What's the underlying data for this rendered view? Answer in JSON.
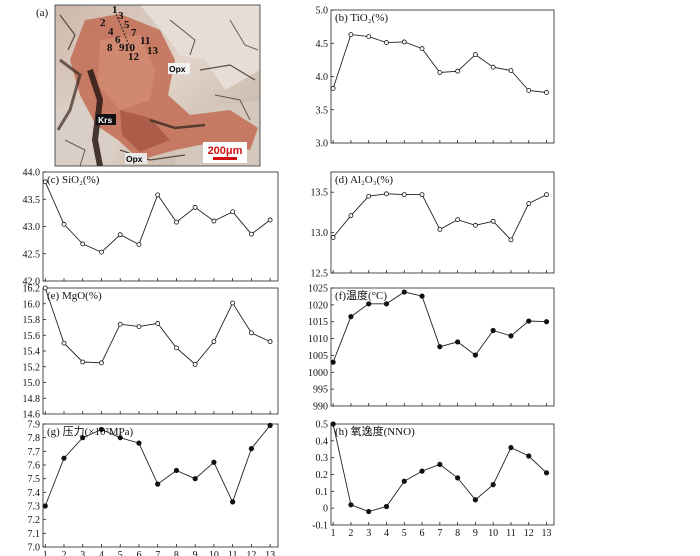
{
  "photo": {
    "label": "(a)",
    "annotations": [
      "Opx",
      "Krs",
      "Opx"
    ],
    "scalebar": "200μm",
    "spots": [
      "1",
      "2",
      "3",
      "4",
      "5",
      "6",
      "7",
      "8",
      "9",
      "10",
      "11",
      "12",
      "13"
    ]
  },
  "chart_data": [
    {
      "id": "b",
      "type": "line",
      "title": "(b) TiO₂(%)",
      "x": [
        1,
        2,
        3,
        4,
        5,
        6,
        7,
        8,
        9,
        10,
        11,
        12,
        13
      ],
      "values": [
        3.82,
        4.63,
        4.6,
        4.51,
        4.52,
        4.42,
        4.06,
        4.08,
        4.33,
        4.14,
        4.09,
        3.79,
        3.76
      ],
      "ylim": [
        3.0,
        5.0
      ],
      "yticks": [
        "3.0",
        "3.5",
        "4.0",
        "4.5",
        "5.0"
      ],
      "marker": "open"
    },
    {
      "id": "c",
      "type": "line",
      "title": "(c) SiO₂(%)",
      "x": [
        1,
        2,
        3,
        4,
        5,
        6,
        7,
        8,
        9,
        10,
        11,
        12,
        13
      ],
      "values": [
        43.82,
        43.04,
        42.68,
        42.53,
        42.85,
        42.67,
        43.58,
        43.08,
        43.35,
        43.1,
        43.27,
        42.86,
        43.12
      ],
      "ylim": [
        42.0,
        44.0
      ],
      "yticks": [
        "42.0",
        "42.5",
        "43.0",
        "43.5",
        "44.0"
      ],
      "marker": "open"
    },
    {
      "id": "d",
      "type": "line",
      "title": "(d) Al₂O₃(%)",
      "x": [
        1,
        2,
        3,
        4,
        5,
        6,
        7,
        8,
        9,
        10,
        11,
        12,
        13
      ],
      "values": [
        12.94,
        13.21,
        13.45,
        13.48,
        13.47,
        13.47,
        13.04,
        13.16,
        13.09,
        13.14,
        12.91,
        13.36,
        13.47
      ],
      "ylim": [
        12.5,
        13.75
      ],
      "yticks": [
        "12.5",
        "13.0",
        "13.5"
      ],
      "marker": "open"
    },
    {
      "id": "e",
      "type": "line",
      "title": "(e) MgO(%)",
      "x": [
        1,
        2,
        3,
        4,
        5,
        6,
        7,
        8,
        9,
        10,
        11,
        12,
        13
      ],
      "values": [
        16.2,
        15.5,
        15.26,
        15.25,
        15.74,
        15.71,
        15.75,
        15.44,
        15.23,
        15.52,
        16.01,
        15.63,
        15.52
      ],
      "ylim": [
        14.6,
        16.2
      ],
      "yticks": [
        "14.6",
        "14.8",
        "15.0",
        "15.2",
        "15.4",
        "15.6",
        "15.8",
        "16.0",
        "16.2"
      ],
      "marker": "open"
    },
    {
      "id": "f",
      "type": "line",
      "title": "(f)温度(°C)",
      "x": [
        1,
        2,
        3,
        4,
        5,
        6,
        7,
        8,
        9,
        10,
        11,
        12,
        13
      ],
      "values": [
        1003,
        1016.5,
        1020.3,
        1020.3,
        1023.8,
        1022.6,
        1007.6,
        1009,
        1005.1,
        1012.4,
        1010.8,
        1015.2,
        1015
      ],
      "ylim": [
        990,
        1025
      ],
      "yticks": [
        "990",
        "995",
        "1000",
        "1005",
        "1010",
        "1015",
        "1020",
        "1025"
      ],
      "marker": "filled"
    },
    {
      "id": "g",
      "type": "line",
      "title": "(g) 压力(×10²MPa)",
      "x": [
        1,
        2,
        3,
        4,
        5,
        6,
        7,
        8,
        9,
        10,
        11,
        12,
        13
      ],
      "values": [
        7.3,
        7.65,
        7.8,
        7.86,
        7.8,
        7.76,
        7.46,
        7.56,
        7.5,
        7.62,
        7.33,
        7.72,
        7.89
      ],
      "ylim": [
        7.0,
        7.9
      ],
      "yticks": [
        "7.0",
        "7.1",
        "7.2",
        "7.3",
        "7.4",
        "7.5",
        "7.6",
        "7.7",
        "7.8",
        "7.9"
      ],
      "xticks": [
        "1",
        "2",
        "3",
        "4",
        "5",
        "6",
        "7",
        "8",
        "9",
        "10",
        "11",
        "12",
        "13"
      ],
      "marker": "filled"
    },
    {
      "id": "h",
      "type": "line",
      "title": "(h) 氧逸度(NNO)",
      "x": [
        1,
        2,
        3,
        4,
        5,
        6,
        7,
        8,
        9,
        10,
        11,
        12,
        13
      ],
      "values": [
        0.5,
        0.02,
        -0.02,
        0.01,
        0.16,
        0.22,
        0.26,
        0.18,
        0.05,
        0.14,
        0.36,
        0.31,
        0.21
      ],
      "ylim": [
        -0.1,
        0.5
      ],
      "yticks": [
        "-0.1",
        "0",
        "0.1",
        "0.2",
        "0.3",
        "0.4",
        "0.5"
      ],
      "xticks": [
        "1",
        "2",
        "3",
        "4",
        "5",
        "6",
        "7",
        "8",
        "9",
        "10",
        "11",
        "12",
        "13"
      ],
      "marker": "filled"
    }
  ]
}
